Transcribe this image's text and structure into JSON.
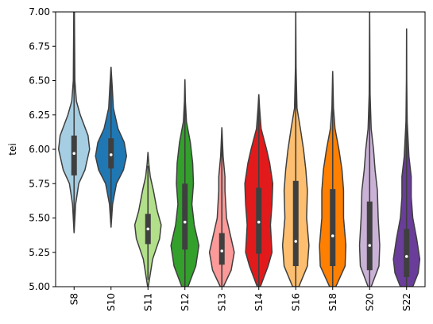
{
  "chart_data": {
    "type": "violin",
    "ylabel": "tei",
    "categories": [
      "S8",
      "S10",
      "S11",
      "S12",
      "S13",
      "S14",
      "S16",
      "S18",
      "S20",
      "S22"
    ],
    "ylim": [
      5.0,
      7.0
    ],
    "yticks": [
      {
        "value": 5.0,
        "label": "5.00"
      },
      {
        "value": 5.25,
        "label": "5.25"
      },
      {
        "value": 5.5,
        "label": "5.50"
      },
      {
        "value": 5.75,
        "label": "5.75"
      },
      {
        "value": 6.0,
        "label": "6.00"
      },
      {
        "value": 6.25,
        "label": "6.25"
      },
      {
        "value": 6.5,
        "label": "6.50"
      },
      {
        "value": 6.75,
        "label": "6.75"
      },
      {
        "value": 7.0,
        "label": "7.00"
      }
    ],
    "violins": [
      {
        "color": "#a6cee3",
        "q1": 5.81,
        "median": 5.97,
        "q3": 6.1,
        "whisker_low": 5.4,
        "whisker_high": 7.0,
        "kde_y": [
          5.39,
          5.6,
          5.75,
          5.85,
          6.0,
          6.1,
          6.25,
          6.35,
          6.5,
          7.0
        ],
        "kde_width": [
          0,
          0.1,
          0.3,
          0.7,
          1.0,
          0.9,
          0.4,
          0.15,
          0.05,
          0.02
        ]
      },
      {
        "color": "#1f78b4",
        "q1": 5.86,
        "median": 5.96,
        "q3": 6.08,
        "whisker_low": 5.5,
        "whisker_high": 6.6,
        "kde_y": [
          5.43,
          5.6,
          5.75,
          5.85,
          5.95,
          6.05,
          6.15,
          6.3,
          6.45,
          6.6
        ],
        "kde_width": [
          0,
          0.1,
          0.35,
          0.8,
          1.0,
          0.85,
          0.45,
          0.15,
          0.08,
          0
        ]
      },
      {
        "color": "#b2df8a",
        "q1": 5.31,
        "median": 5.42,
        "q3": 5.53,
        "whisker_low": 5.05,
        "whisker_high": 5.88,
        "kde_y": [
          5.0,
          5.2,
          5.35,
          5.45,
          5.55,
          5.7,
          5.8,
          5.9,
          5.98
        ],
        "kde_width": [
          0.02,
          0.3,
          0.75,
          0.85,
          0.6,
          0.35,
          0.15,
          0.05,
          0
        ]
      },
      {
        "color": "#33a02c",
        "q1": 5.27,
        "median": 5.47,
        "q3": 5.75,
        "whisker_low": 5.0,
        "whisker_high": 6.5,
        "kde_y": [
          5.0,
          5.15,
          5.3,
          5.45,
          5.6,
          5.75,
          5.9,
          6.05,
          6.2,
          6.35,
          6.51
        ],
        "kde_width": [
          0.2,
          0.7,
          0.9,
          0.6,
          0.45,
          0.55,
          0.5,
          0.35,
          0.1,
          0.03,
          0
        ]
      },
      {
        "color": "#fb9a99",
        "q1": 5.16,
        "median": 5.26,
        "q3": 5.39,
        "whisker_low": 5.0,
        "whisker_high": 6.15,
        "kde_y": [
          5.0,
          5.12,
          5.25,
          5.35,
          5.5,
          5.7,
          5.8,
          5.95,
          6.16
        ],
        "kde_width": [
          0.1,
          0.6,
          0.8,
          0.6,
          0.3,
          0.2,
          0.2,
          0.08,
          0
        ]
      },
      {
        "color": "#e31a1c",
        "q1": 5.24,
        "median": 5.47,
        "q3": 5.72,
        "whisker_low": 5.0,
        "whisker_high": 6.4,
        "kde_y": [
          5.0,
          5.15,
          5.25,
          5.45,
          5.6,
          5.75,
          5.9,
          6.0,
          6.15,
          6.3,
          6.4
        ],
        "kde_width": [
          0.1,
          0.6,
          0.85,
          0.75,
          0.85,
          0.9,
          0.7,
          0.5,
          0.15,
          0.05,
          0
        ]
      },
      {
        "color": "#fdbf6f",
        "q1": 5.15,
        "median": 5.33,
        "q3": 5.77,
        "whisker_low": 5.0,
        "whisker_high": 7.0,
        "kde_y": [
          5.0,
          5.15,
          5.3,
          5.5,
          5.7,
          5.85,
          6.0,
          6.15,
          6.3,
          6.6,
          7.0
        ],
        "kde_width": [
          0.2,
          0.75,
          0.85,
          0.7,
          0.75,
          0.65,
          0.5,
          0.3,
          0.08,
          0.02,
          0
        ]
      },
      {
        "color": "#ff7f00",
        "q1": 5.15,
        "median": 5.37,
        "q3": 5.71,
        "whisker_low": 5.0,
        "whisker_high": 6.55,
        "kde_y": [
          5.0,
          5.15,
          5.3,
          5.5,
          5.7,
          5.85,
          6.0,
          6.15,
          6.3,
          6.57
        ],
        "kde_width": [
          0.2,
          0.8,
          0.85,
          0.7,
          0.7,
          0.6,
          0.4,
          0.15,
          0.05,
          0
        ]
      },
      {
        "color": "#cab2d6",
        "q1": 5.12,
        "median": 5.3,
        "q3": 5.62,
        "whisker_low": 5.0,
        "whisker_high": 7.0,
        "kde_y": [
          5.0,
          5.15,
          5.3,
          5.5,
          5.7,
          5.85,
          6.0,
          6.15,
          6.4,
          7.0
        ],
        "kde_width": [
          0.1,
          0.6,
          0.65,
          0.55,
          0.5,
          0.35,
          0.25,
          0.1,
          0.03,
          0
        ]
      },
      {
        "color": "#6a3d9a",
        "q1": 5.07,
        "median": 5.22,
        "q3": 5.42,
        "whisker_low": 5.0,
        "whisker_high": 6.87,
        "kde_y": [
          5.0,
          5.1,
          5.2,
          5.35,
          5.5,
          5.65,
          5.8,
          5.95,
          6.2,
          6.5,
          6.88
        ],
        "kde_width": [
          0.4,
          0.75,
          0.85,
          0.65,
          0.4,
          0.3,
          0.3,
          0.15,
          0.04,
          0.01,
          0
        ]
      }
    ]
  }
}
